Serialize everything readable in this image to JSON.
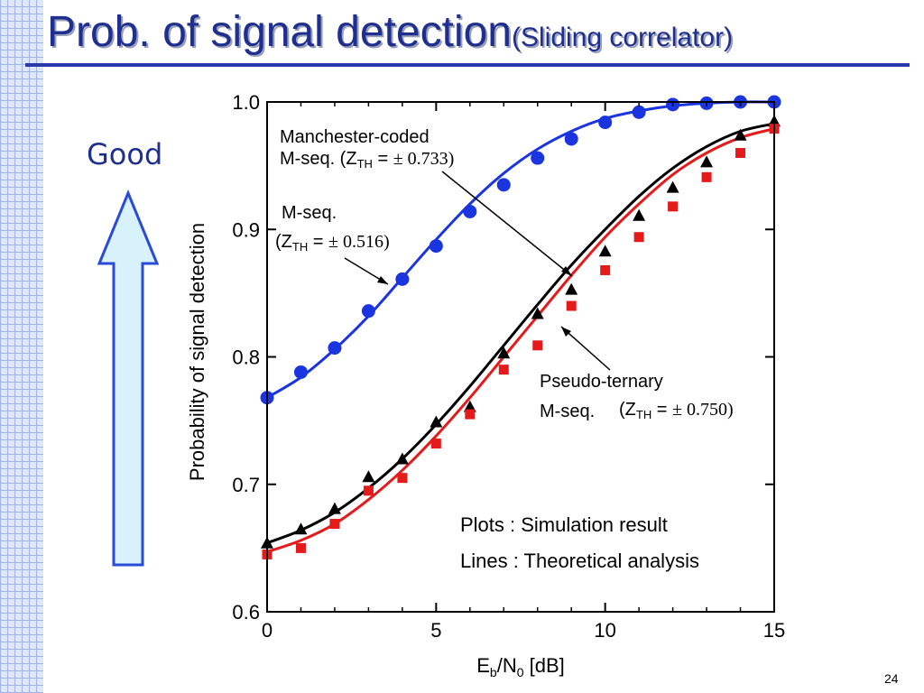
{
  "slide": {
    "title_main": "Prob. of signal detection",
    "title_sub": "(Sliding correlator)",
    "side_label": "Good",
    "page_number": "24"
  },
  "legend_notes": {
    "plots": "Plots : Simulation result",
    "lines": "Lines : Theoretical analysis"
  },
  "annotations": {
    "manchester_line1": "Manchester-coded",
    "manchester_line2": "M-seq. (Z",
    "manchester_sub": "TH",
    "manchester_eq": " = ",
    "manchester_val": "± 0.733)",
    "mseq_line1": "M-seq.",
    "mseq_line2": "(Z",
    "mseq_sub": "TH",
    "mseq_eq": " = ",
    "mseq_val": "± 0.516)",
    "pt_line1": "Pseudo-ternary",
    "pt_line2": "M-seq.",
    "pt_zopen": "(Z",
    "pt_sub": "TH",
    "pt_eq": " = ",
    "pt_val": "± 0.750)"
  },
  "colors": {
    "title": "#1f2f8f",
    "manchester": "#1a35e0",
    "mseq": "#000000",
    "pseudo_ternary": "#e51a1a",
    "arrow_fill": "#d8f2fc",
    "arrow_stroke": "#2a4ad8"
  },
  "chart_data": {
    "type": "line",
    "xlabel": "E",
    "xlabel_sub1": "b",
    "xlabel_mid": "/N",
    "xlabel_sub2": "0",
    "xlabel_unit": " [dB]",
    "ylabel": "Probability of signal detection",
    "xlim": [
      0,
      15
    ],
    "ylim": [
      0.6,
      1.0
    ],
    "xticks": [
      0,
      5,
      10,
      15
    ],
    "xtick_labels": [
      "0",
      "5",
      "10",
      "15"
    ],
    "yticks": [
      0.6,
      0.7,
      0.8,
      0.9,
      1.0
    ],
    "ytick_labels": [
      "0.6",
      "0.7",
      "0.8",
      "0.9",
      "1.0"
    ],
    "x": [
      0,
      1,
      2,
      3,
      4,
      5,
      6,
      7,
      8,
      9,
      10,
      11,
      12,
      13,
      14,
      15
    ],
    "series": [
      {
        "id": "manchester",
        "marker": "circle",
        "points": [
          0.768,
          0.788,
          0.807,
          0.836,
          0.861,
          0.887,
          0.914,
          0.935,
          0.956,
          0.971,
          0.984,
          0.992,
          0.998,
          0.999,
          1.0,
          1.0
        ],
        "theory": [
          0.768,
          0.784,
          0.806,
          0.832,
          0.862,
          0.892,
          0.92,
          0.944,
          0.963,
          0.977,
          0.987,
          0.993,
          0.997,
          0.999,
          1.0,
          1.0
        ]
      },
      {
        "id": "mseq",
        "marker": "triangle",
        "points": [
          0.654,
          0.665,
          0.681,
          0.706,
          0.72,
          0.749,
          0.761,
          0.803,
          0.834,
          0.853,
          0.883,
          0.911,
          0.933,
          0.953,
          0.974,
          0.985
        ],
        "theory": [
          0.654,
          0.664,
          0.678,
          0.697,
          0.72,
          0.747,
          0.777,
          0.809,
          0.841,
          0.872,
          0.9,
          0.926,
          0.948,
          0.965,
          0.977,
          0.983
        ]
      },
      {
        "id": "pseudo_ternary",
        "marker": "square",
        "points": [
          0.645,
          0.65,
          0.669,
          0.695,
          0.705,
          0.732,
          0.755,
          0.79,
          0.809,
          0.84,
          0.868,
          0.894,
          0.918,
          0.941,
          0.96,
          0.979
        ],
        "theory": [
          0.647,
          0.656,
          0.669,
          0.688,
          0.711,
          0.738,
          0.768,
          0.8,
          0.832,
          0.864,
          0.894,
          0.92,
          0.943,
          0.96,
          0.972,
          0.979
        ]
      }
    ]
  }
}
